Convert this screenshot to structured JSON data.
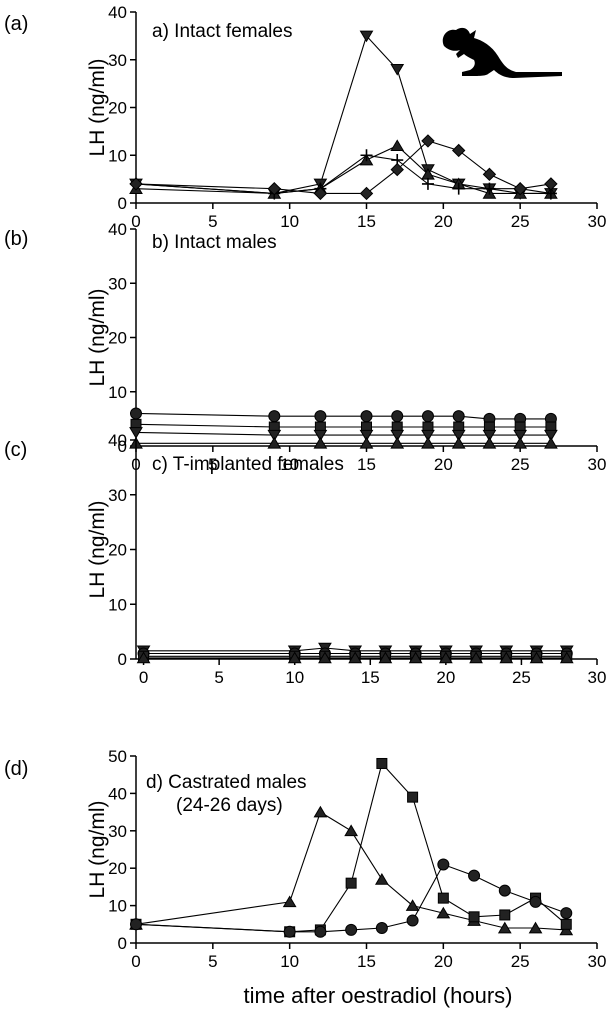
{
  "figure": {
    "xlabel": "time after oestradiol (hours)"
  },
  "chart_data": [
    {
      "type": "line",
      "panel": "(a)",
      "title": "a) Intact females",
      "ylabel": "LH (ng/ml)",
      "xlim": [
        0,
        30
      ],
      "ylim": [
        0,
        40
      ],
      "xticks": [
        0,
        5,
        10,
        15,
        20,
        25,
        30
      ],
      "yticks": [
        0,
        10,
        20,
        30,
        40
      ],
      "has_icon": "kangaroo-silhouette-icon",
      "series": [
        {
          "marker": "triangle-down",
          "x": [
            0,
            9,
            12,
            15,
            17,
            19,
            21,
            23,
            25,
            27
          ],
          "y": [
            4,
            2,
            4,
            35,
            28,
            7,
            4,
            3,
            2,
            2
          ]
        },
        {
          "marker": "triangle-up",
          "x": [
            0,
            9,
            12,
            15,
            17,
            19,
            21,
            23,
            25,
            27
          ],
          "y": [
            3,
            2,
            3,
            9,
            12,
            6,
            4,
            2,
            2,
            2
          ]
        },
        {
          "marker": "plus",
          "x": [
            0,
            9,
            12,
            15,
            17,
            19,
            21,
            23,
            25,
            27
          ],
          "y": [
            4,
            2,
            3,
            10,
            9,
            4,
            3,
            3,
            3,
            2
          ]
        },
        {
          "marker": "diamond",
          "x": [
            0,
            9,
            12,
            15,
            17,
            19,
            21,
            23,
            25,
            27
          ],
          "y": [
            4,
            3,
            2,
            2,
            7,
            13,
            11,
            6,
            3,
            4
          ]
        }
      ]
    },
    {
      "type": "line",
      "panel": "(b)",
      "title": "b) Intact males",
      "ylabel": "LH (ng/ml)",
      "xlim": [
        0,
        30
      ],
      "ylim": [
        0,
        40
      ],
      "xticks": [
        0,
        5,
        10,
        15,
        20,
        25,
        30
      ],
      "yticks": [
        0,
        10,
        20,
        30,
        40
      ],
      "series": [
        {
          "marker": "circle",
          "x": [
            0,
            9,
            12,
            15,
            17,
            19,
            21,
            23,
            25,
            27
          ],
          "y": [
            6,
            5.5,
            5.5,
            5.5,
            5.5,
            5.5,
            5.5,
            5,
            5,
            5
          ]
        },
        {
          "marker": "square",
          "x": [
            0,
            9,
            12,
            15,
            17,
            19,
            21,
            23,
            25,
            27
          ],
          "y": [
            4,
            3.5,
            3.5,
            3.5,
            3.5,
            3.5,
            3.5,
            3.5,
            3.5,
            3.5
          ]
        },
        {
          "marker": "triangle-down",
          "x": [
            0,
            9,
            12,
            15,
            17,
            19,
            21,
            23,
            25,
            27
          ],
          "y": [
            2.5,
            2,
            2,
            2,
            2,
            2,
            2,
            2,
            2,
            2
          ]
        },
        {
          "marker": "triangle-up",
          "x": [
            0,
            9,
            12,
            15,
            17,
            19,
            21,
            23,
            25,
            27
          ],
          "y": [
            0.5,
            0.5,
            0.5,
            0.5,
            0.5,
            0.5,
            0.5,
            0.5,
            0.5,
            0.5
          ]
        }
      ]
    },
    {
      "type": "line",
      "panel": "(c)",
      "title": "c) T-implanted females",
      "ylabel": "LH (ng/ml)",
      "xlim": [
        -0.5,
        30
      ],
      "ylim": [
        0,
        40
      ],
      "xticks": [
        0,
        5,
        10,
        15,
        20,
        25,
        30
      ],
      "yticks": [
        0,
        10,
        20,
        30,
        40
      ],
      "series": [
        {
          "marker": "triangle-down",
          "x": [
            0,
            10,
            12,
            14,
            16,
            18,
            20,
            22,
            24,
            26,
            28
          ],
          "y": [
            1.5,
            1.5,
            2,
            1.5,
            1.5,
            1.5,
            1.5,
            1.5,
            1.5,
            1.5,
            1.5
          ]
        },
        {
          "marker": "circle",
          "x": [
            0,
            10,
            12,
            14,
            16,
            18,
            20,
            22,
            24,
            26,
            28
          ],
          "y": [
            1,
            1,
            1,
            1,
            1,
            1,
            1,
            1,
            1,
            1,
            1
          ]
        },
        {
          "marker": "square",
          "x": [
            0,
            10,
            12,
            14,
            16,
            18,
            20,
            22,
            24,
            26,
            28
          ],
          "y": [
            0.5,
            0.5,
            0.5,
            0.5,
            0.5,
            0.5,
            0.5,
            0.5,
            0.5,
            0.5,
            0.5
          ]
        },
        {
          "marker": "triangle-up",
          "x": [
            0,
            10,
            12,
            14,
            16,
            18,
            20,
            22,
            24,
            26,
            28
          ],
          "y": [
            0.2,
            0.2,
            0.2,
            0.2,
            0.2,
            0.2,
            0.2,
            0.2,
            0.2,
            0.2,
            0.2
          ]
        }
      ]
    },
    {
      "type": "line",
      "panel": "(d)",
      "title": "d) Castrated males",
      "subtitle": "(24-26 days)",
      "ylabel": "LH (ng/ml)",
      "xlim": [
        0,
        30
      ],
      "ylim": [
        0,
        50
      ],
      "xticks": [
        0,
        5,
        10,
        15,
        20,
        25,
        30
      ],
      "yticks": [
        0,
        10,
        20,
        30,
        40,
        50
      ],
      "series": [
        {
          "marker": "triangle-up",
          "x": [
            0,
            10,
            12,
            14,
            16,
            18,
            20,
            22,
            24,
            26,
            28
          ],
          "y": [
            5,
            11,
            35,
            30,
            17,
            10,
            8,
            6,
            4,
            4,
            3.5
          ]
        },
        {
          "marker": "square",
          "x": [
            0,
            10,
            12,
            14,
            16,
            18,
            20,
            22,
            24,
            26,
            28
          ],
          "y": [
            5,
            3,
            3.5,
            16,
            48,
            39,
            12,
            7,
            7.5,
            12,
            5
          ]
        },
        {
          "marker": "circle",
          "x": [
            0,
            10,
            12,
            14,
            16,
            18,
            20,
            22,
            24,
            26,
            28
          ],
          "y": [
            5,
            3,
            3,
            3.5,
            4,
            6,
            21,
            18,
            14,
            11,
            8
          ]
        }
      ]
    }
  ]
}
